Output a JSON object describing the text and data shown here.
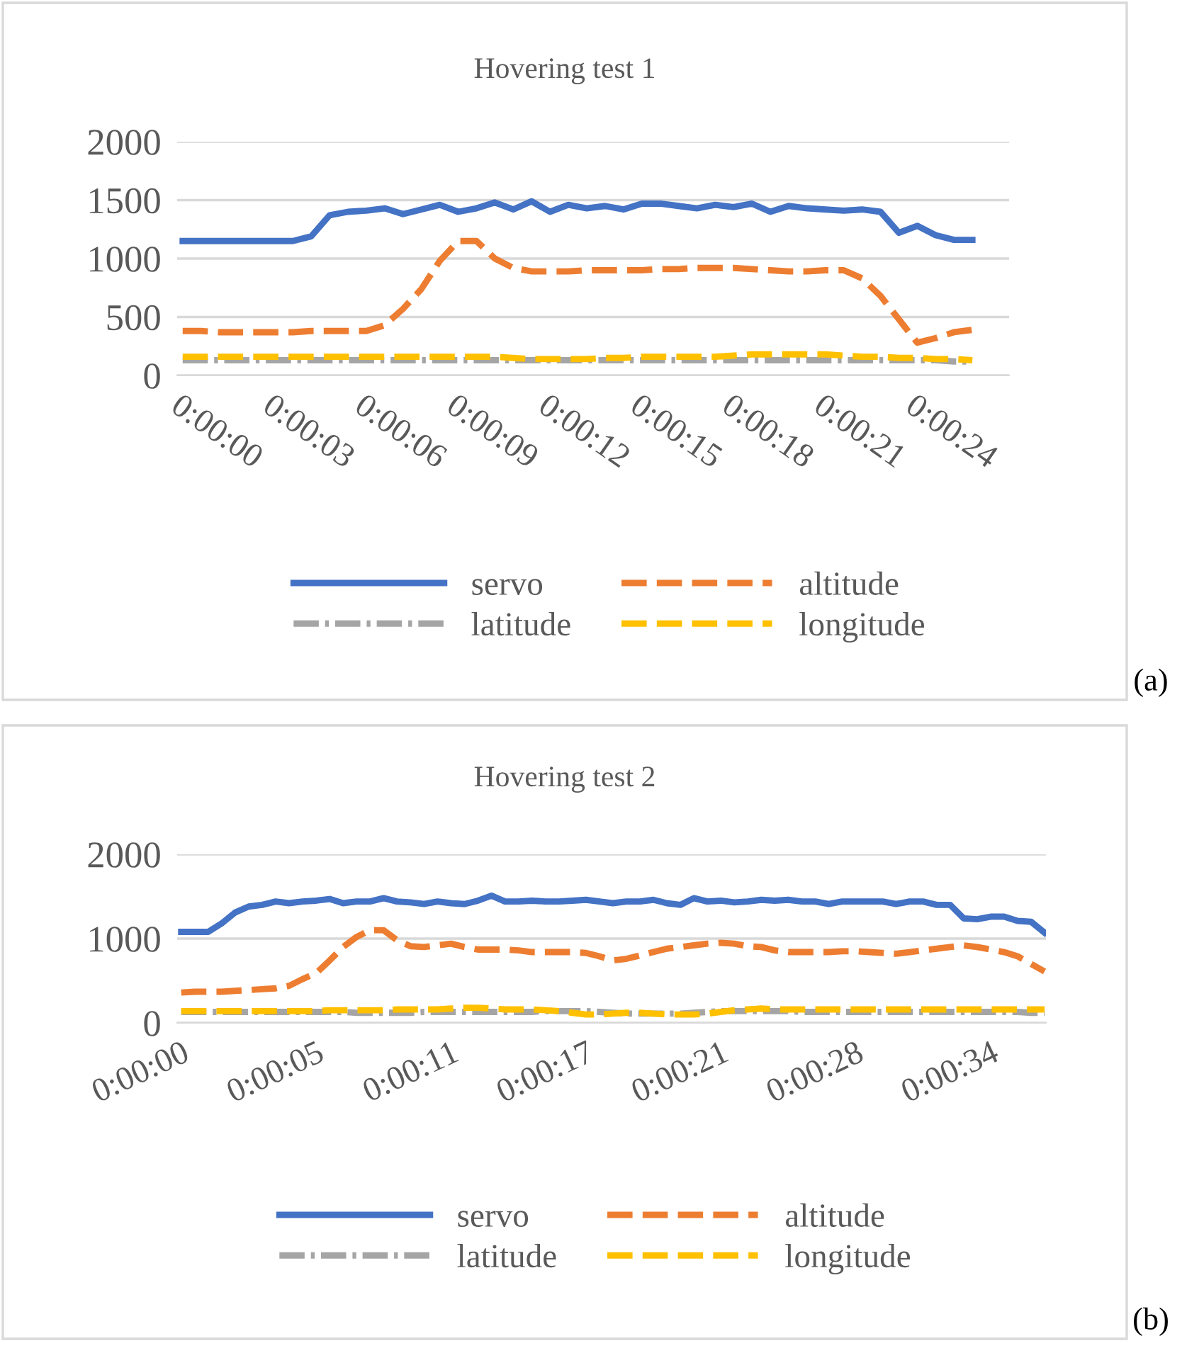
{
  "chart_data": [
    {
      "type": "line",
      "title": "Hovering test 1",
      "annotations": [
        "(a)"
      ],
      "categories": [
        "0:00:00",
        null,
        null,
        null,
        null,
        "0:00:03",
        null,
        null,
        null,
        null,
        "0:00:06",
        null,
        null,
        null,
        null,
        "0:00:09",
        null,
        null,
        null,
        null,
        "0:00:12",
        null,
        null,
        null,
        null,
        "0:00:15",
        null,
        null,
        null,
        null,
        "0:00:18",
        null,
        null,
        null,
        null,
        "0:00:21",
        null,
        null,
        null,
        null,
        "0:00:24",
        null,
        null,
        null
      ],
      "series": [
        {
          "name": "servo",
          "color": "#4472c4",
          "line_style": "solid",
          "values": [
            1150,
            1150,
            1150,
            1150,
            1150,
            1150,
            1150,
            1190,
            1370,
            1400,
            1410,
            1430,
            1380,
            1420,
            1460,
            1400,
            1430,
            1480,
            1420,
            1490,
            1400,
            1460,
            1430,
            1450,
            1420,
            1470,
            1470,
            1450,
            1430,
            1460,
            1440,
            1470,
            1400,
            1450,
            1430,
            1420,
            1410,
            1420,
            1400,
            1220,
            1280,
            1200,
            1160,
            1160
          ]
        },
        {
          "name": "altitude",
          "color": "#ed7d31",
          "line_style": "dashed",
          "values": [
            380,
            380,
            370,
            370,
            370,
            370,
            370,
            380,
            380,
            380,
            380,
            430,
            570,
            740,
            980,
            1150,
            1150,
            1000,
            920,
            890,
            890,
            890,
            900,
            900,
            900,
            900,
            910,
            910,
            920,
            920,
            920,
            910,
            900,
            890,
            890,
            900,
            900,
            830,
            680,
            480,
            280,
            320,
            370,
            390
          ]
        },
        {
          "name": "latitude",
          "color": "#a5a5a5",
          "line_style": "dashdot",
          "values": [
            130,
            130,
            130,
            130,
            130,
            130,
            130,
            130,
            130,
            130,
            130,
            130,
            130,
            130,
            130,
            130,
            130,
            130,
            130,
            130,
            130,
            130,
            130,
            130,
            130,
            130,
            130,
            130,
            130,
            130,
            130,
            130,
            130,
            130,
            130,
            130,
            130,
            130,
            130,
            130,
            130,
            130,
            120,
            120
          ]
        },
        {
          "name": "longitude",
          "color": "#ffc000",
          "line_style": "dashed",
          "values": [
            160,
            160,
            160,
            160,
            160,
            160,
            160,
            160,
            160,
            160,
            160,
            160,
            160,
            160,
            160,
            160,
            160,
            160,
            150,
            140,
            140,
            140,
            140,
            150,
            150,
            160,
            160,
            160,
            160,
            160,
            170,
            180,
            180,
            180,
            180,
            180,
            170,
            160,
            160,
            150,
            150,
            140,
            140,
            130
          ]
        }
      ],
      "ylim": [
        0,
        2000
      ],
      "yticks": [
        0,
        500,
        1000,
        1500,
        2000
      ],
      "grid": "y",
      "legend": "bottom",
      "marker": "none"
    },
    {
      "type": "line",
      "title": "Hovering test 2",
      "annotations": [
        "(b)"
      ],
      "categories": [
        "0:00:00",
        null,
        null,
        null,
        null,
        null,
        null,
        null,
        null,
        null,
        "0:00:05",
        null,
        null,
        null,
        null,
        null,
        null,
        null,
        null,
        null,
        "0:00:11",
        null,
        null,
        null,
        null,
        null,
        null,
        null,
        null,
        null,
        "0:00:17",
        null,
        null,
        null,
        null,
        null,
        null,
        null,
        null,
        null,
        "0:00:21",
        null,
        null,
        null,
        null,
        null,
        null,
        null,
        null,
        null,
        "0:00:28",
        null,
        null,
        null,
        null,
        null,
        null,
        null,
        null,
        null,
        "0:00:34",
        null,
        null,
        null,
        null
      ],
      "series": [
        {
          "name": "servo",
          "color": "#4472c4",
          "line_style": "solid",
          "values": [
            1080,
            1080,
            1080,
            1180,
            1310,
            1380,
            1400,
            1440,
            1420,
            1440,
            1450,
            1470,
            1420,
            1440,
            1440,
            1480,
            1440,
            1430,
            1410,
            1440,
            1420,
            1410,
            1450,
            1510,
            1440,
            1440,
            1450,
            1440,
            1440,
            1450,
            1460,
            1440,
            1420,
            1440,
            1440,
            1460,
            1420,
            1400,
            1480,
            1440,
            1450,
            1430,
            1440,
            1460,
            1450,
            1460,
            1440,
            1440,
            1410,
            1440,
            1440,
            1440,
            1440,
            1410,
            1440,
            1440,
            1400,
            1400,
            1240,
            1230,
            1260,
            1260,
            1210,
            1200,
            1070
          ]
        },
        {
          "name": "altitude",
          "color": "#ed7d31",
          "line_style": "dashed",
          "values": [
            360,
            370,
            370,
            370,
            380,
            390,
            400,
            410,
            440,
            520,
            590,
            740,
            900,
            1020,
            1100,
            1100,
            980,
            910,
            900,
            920,
            940,
            900,
            870,
            870,
            870,
            860,
            840,
            840,
            840,
            840,
            830,
            790,
            740,
            760,
            800,
            840,
            880,
            900,
            920,
            940,
            950,
            940,
            910,
            900,
            860,
            840,
            840,
            840,
            840,
            850,
            850,
            840,
            830,
            820,
            840,
            860,
            880,
            900,
            920,
            900,
            870,
            840,
            790,
            700,
            610
          ]
        },
        {
          "name": "latitude",
          "color": "#a5a5a5",
          "line_style": "dashdot",
          "values": [
            130,
            130,
            130,
            130,
            130,
            130,
            130,
            130,
            130,
            130,
            130,
            130,
            130,
            120,
            120,
            120,
            120,
            120,
            130,
            130,
            130,
            130,
            130,
            130,
            130,
            130,
            130,
            140,
            140,
            140,
            140,
            130,
            120,
            110,
            110,
            110,
            110,
            110,
            120,
            130,
            140,
            140,
            140,
            140,
            140,
            140,
            130,
            130,
            130,
            130,
            130,
            130,
            130,
            130,
            130,
            130,
            130,
            130,
            130,
            130,
            130,
            130,
            130,
            120,
            120
          ]
        },
        {
          "name": "longitude",
          "color": "#ffc000",
          "line_style": "dashed",
          "values": [
            140,
            140,
            140,
            140,
            140,
            140,
            140,
            140,
            140,
            140,
            140,
            150,
            150,
            150,
            150,
            150,
            160,
            160,
            160,
            160,
            170,
            180,
            180,
            170,
            160,
            160,
            160,
            150,
            140,
            120,
            100,
            100,
            110,
            120,
            120,
            110,
            100,
            100,
            100,
            110,
            130,
            150,
            160,
            170,
            160,
            160,
            160,
            160,
            160,
            160,
            160,
            160,
            160,
            160,
            160,
            160,
            160,
            160,
            160,
            160,
            160,
            160,
            160,
            160,
            160
          ]
        }
      ],
      "ylim": [
        0,
        2000
      ],
      "yticks": [
        0,
        1000,
        2000
      ],
      "grid": "y",
      "legend": "bottom",
      "marker": "none"
    }
  ]
}
